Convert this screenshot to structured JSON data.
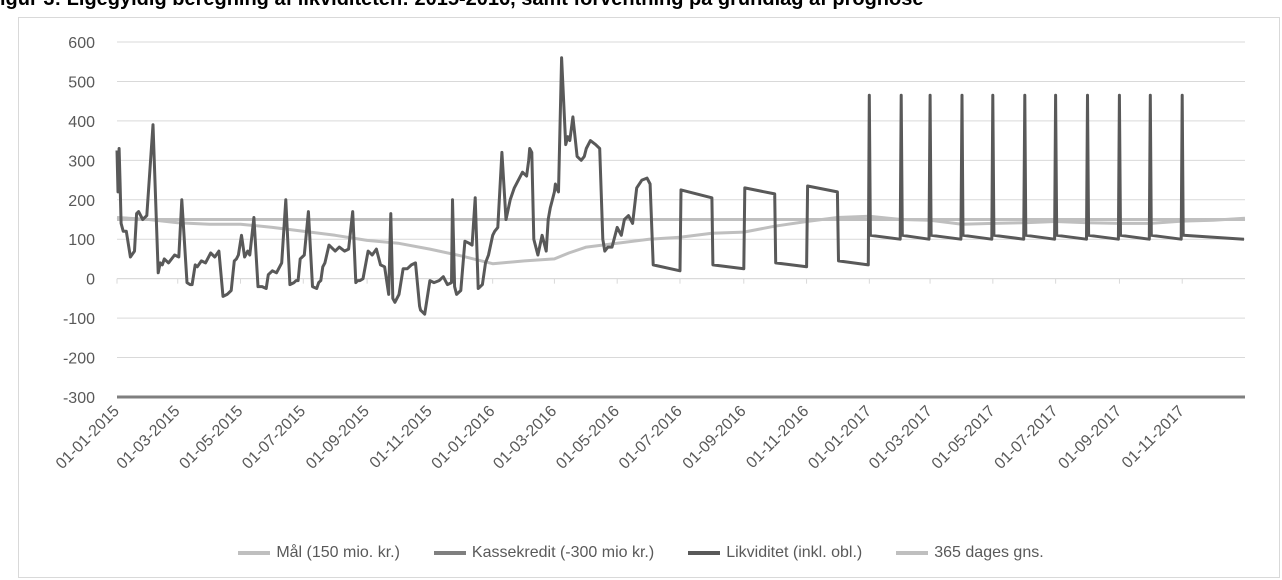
{
  "title": "igur 3: Ligegyldig beregning af likviditeten: 2015-2016, samt forventning på grundlag af prognose",
  "colors": {
    "mal": "#bfbfbf",
    "kassekredit": "#7f7f7f",
    "likviditet": "#595959",
    "gns": "#bfbfbf",
    "grid": "#d9d9d9",
    "axis_text": "#595959"
  },
  "chart_data": {
    "type": "line",
    "title": "",
    "xlabel": "",
    "ylabel": "",
    "ylim": [
      -300,
      600
    ],
    "yticks": [
      -300,
      -200,
      -100,
      0,
      100,
      200,
      300,
      400,
      500,
      600
    ],
    "x_tick_labels": [
      "01-01-2015",
      "01-03-2015",
      "01-05-2015",
      "01-07-2015",
      "01-09-2015",
      "01-11-2015",
      "01-01-2016",
      "01-03-2016",
      "01-05-2016",
      "01-07-2016",
      "01-09-2016",
      "01-11-2016",
      "01-01-2017",
      "01-03-2017",
      "01-05-2017",
      "01-07-2017",
      "01-09-2017",
      "01-11-2017"
    ],
    "xlim": [
      "2015-01-01",
      "2018-01-01"
    ],
    "grid": "horizontal",
    "legend_position": "bottom",
    "series": [
      {
        "name": "Mål (150 mio. kr.)",
        "x": [
          "2015-01-01",
          "2018-01-01"
        ],
        "values": [
          150,
          150
        ]
      },
      {
        "name": "Kassekredit (-300 mio kr.)",
        "x": [
          "2015-01-01",
          "2018-01-01"
        ],
        "values": [
          -300,
          -300
        ]
      },
      {
        "name": "Likviditet (inkl. obl.)",
        "x": [
          "2015-01-01",
          "2015-01-02",
          "2015-01-03",
          "2015-01-04",
          "2015-01-05",
          "2015-01-07",
          "2015-01-10",
          "2015-01-14",
          "2015-01-18",
          "2015-01-20",
          "2015-01-22",
          "2015-01-26",
          "2015-01-30",
          "2015-02-05",
          "2015-02-10",
          "2015-02-12",
          "2015-02-14",
          "2015-02-16",
          "2015-02-20",
          "2015-02-26",
          "2015-03-02",
          "2015-03-05",
          "2015-03-10",
          "2015-03-13",
          "2015-03-15",
          "2015-03-18",
          "2015-03-20",
          "2015-03-24",
          "2015-03-28",
          "2015-04-02",
          "2015-04-06",
          "2015-04-10",
          "2015-04-14",
          "2015-04-18",
          "2015-04-22",
          "2015-04-25",
          "2015-04-27",
          "2015-04-29",
          "2015-05-02",
          "2015-05-05",
          "2015-05-08",
          "2015-05-10",
          "2015-05-14",
          "2015-05-18",
          "2015-05-22",
          "2015-05-26",
          "2015-05-28",
          "2015-06-01",
          "2015-06-05",
          "2015-06-10",
          "2015-06-14",
          "2015-06-18",
          "2015-06-22",
          "2015-06-24",
          "2015-06-26",
          "2015-06-28",
          "2015-07-02",
          "2015-07-06",
          "2015-07-10",
          "2015-07-14",
          "2015-07-16",
          "2015-07-18",
          "2015-07-20",
          "2015-07-22",
          "2015-07-26",
          "2015-08-01",
          "2015-08-05",
          "2015-08-10",
          "2015-08-14",
          "2015-08-18",
          "2015-08-21",
          "2015-08-23",
          "2015-08-25",
          "2015-08-28",
          "2015-09-02",
          "2015-09-06",
          "2015-09-10",
          "2015-09-14",
          "2015-09-18",
          "2015-09-22",
          "2015-09-24",
          "2015-09-26",
          "2015-09-28",
          "2015-10-02",
          "2015-10-06",
          "2015-10-10",
          "2015-10-14",
          "2015-10-18",
          "2015-10-22",
          "2015-10-23",
          "2015-10-25",
          "2015-10-27",
          "2015-11-01",
          "2015-11-05",
          "2015-11-10",
          "2015-11-14",
          "2015-11-18",
          "2015-11-22",
          "2015-11-23",
          "2015-11-25",
          "2015-11-27",
          "2015-12-01",
          "2015-12-05",
          "2015-12-09",
          "2015-12-12",
          "2015-12-15",
          "2015-12-18",
          "2015-12-20",
          "2015-12-22",
          "2015-12-25",
          "2015-12-28",
          "2016-01-01",
          "2016-01-03",
          "2016-01-06",
          "2016-01-10",
          "2016-01-14",
          "2016-01-18",
          "2016-01-22",
          "2016-01-26",
          "2016-01-30",
          "2016-02-03",
          "2016-02-05",
          "2016-02-06",
          "2016-02-08",
          "2016-02-10",
          "2016-02-14",
          "2016-02-18",
          "2016-02-22",
          "2016-02-24",
          "2016-02-26",
          "2016-02-28",
          "2016-03-01",
          "2016-03-02",
          "2016-03-03",
          "2016-03-05",
          "2016-03-08",
          "2016-03-12",
          "2016-03-14",
          "2016-03-16",
          "2016-03-19",
          "2016-03-23",
          "2016-03-27",
          "2016-03-30",
          "2016-04-01",
          "2016-04-05",
          "2016-04-10",
          "2016-04-14",
          "2016-04-17",
          "2016-04-19",
          "2016-04-22",
          "2016-04-26",
          "2016-05-01",
          "2016-05-05",
          "2016-05-08",
          "2016-05-12",
          "2016-05-16",
          "2016-05-20",
          "2016-05-25",
          "2016-05-30",
          "2016-06-02",
          "2016-06-05",
          "2016-07-01",
          "2016-07-02",
          "2016-08-01",
          "2016-08-02",
          "2016-09-01",
          "2016-09-02",
          "2016-10-01",
          "2016-10-02",
          "2016-11-01",
          "2016-11-02",
          "2016-12-01",
          "2016-12-02",
          "2016-12-31",
          "2017-01-01",
          "2017-01-02",
          "2017-01-31",
          "2017-02-01",
          "2017-02-02",
          "2017-02-28",
          "2017-03-01",
          "2017-03-02",
          "2017-03-31",
          "2017-04-01",
          "2017-04-02",
          "2017-04-30",
          "2017-05-01",
          "2017-05-02",
          "2017-05-31",
          "2017-06-01",
          "2017-06-02",
          "2017-06-30",
          "2017-07-01",
          "2017-07-02",
          "2017-07-31",
          "2017-08-01",
          "2017-08-02",
          "2017-08-31",
          "2017-09-01",
          "2017-09-02",
          "2017-09-30",
          "2017-10-01",
          "2017-10-02",
          "2017-10-31",
          "2017-11-01",
          "2017-11-02",
          "2017-12-31"
        ],
        "values": [
          325,
          220,
          330,
          240,
          140,
          120,
          120,
          55,
          70,
          165,
          170,
          150,
          160,
          390,
          15,
          40,
          35,
          50,
          40,
          60,
          55,
          200,
          -10,
          -15,
          -15,
          35,
          30,
          45,
          40,
          65,
          55,
          70,
          -45,
          -40,
          -30,
          45,
          50,
          60,
          110,
          55,
          70,
          60,
          155,
          -20,
          -20,
          -25,
          10,
          20,
          15,
          40,
          200,
          -15,
          -10,
          -5,
          -5,
          50,
          60,
          170,
          -20,
          -25,
          -10,
          -5,
          30,
          40,
          85,
          70,
          80,
          70,
          75,
          170,
          -10,
          -5,
          -5,
          0,
          70,
          60,
          75,
          35,
          30,
          -40,
          165,
          -50,
          -60,
          -40,
          25,
          25,
          35,
          40,
          -70,
          -80,
          -85,
          -90,
          -5,
          -10,
          -5,
          5,
          -15,
          -10,
          200,
          -20,
          -40,
          -30,
          95,
          90,
          85,
          205,
          -25,
          -20,
          -15,
          40,
          60,
          110,
          120,
          130,
          320,
          150,
          200,
          230,
          250,
          270,
          260,
          300,
          330,
          320,
          100,
          60,
          110,
          70,
          150,
          180,
          200,
          220,
          240,
          230,
          220,
          560,
          340,
          360,
          350,
          410,
          310,
          300,
          310,
          330,
          350,
          340,
          330,
          100,
          70,
          80,
          80,
          130,
          110,
          150,
          160,
          140,
          230,
          250,
          255,
          240,
          35,
          20,
          225,
          205,
          35,
          25,
          230,
          215,
          40,
          30,
          235,
          220,
          45,
          35,
          465,
          110,
          100,
          465,
          110,
          100,
          465,
          110,
          100,
          465,
          110,
          100,
          465,
          110,
          100,
          465,
          110,
          100,
          465,
          110,
          100,
          465,
          110,
          100,
          465,
          110,
          100,
          465,
          110,
          100,
          465,
          110,
          100
        ]
      },
      {
        "name": "365 dages gns.",
        "x": [
          "2015-01-01",
          "2015-02-01",
          "2015-03-01",
          "2015-04-01",
          "2015-05-01",
          "2015-06-01",
          "2015-07-01",
          "2015-08-01",
          "2015-09-01",
          "2015-10-01",
          "2015-11-01",
          "2015-12-01",
          "2016-01-01",
          "2016-02-01",
          "2016-03-01",
          "2016-03-15",
          "2016-04-01",
          "2016-05-01",
          "2016-06-01",
          "2016-07-01",
          "2016-08-01",
          "2016-09-01",
          "2016-10-01",
          "2016-11-01",
          "2016-12-01",
          "2017-01-01",
          "2017-02-01",
          "2017-03-01",
          "2017-04-01",
          "2017-05-01",
          "2017-06-01",
          "2017-07-01",
          "2017-08-01",
          "2017-09-01",
          "2017-10-01",
          "2017-11-01",
          "2017-12-01",
          "2018-01-01"
        ],
        "values": [
          155,
          150,
          142,
          138,
          138,
          130,
          120,
          110,
          97,
          90,
          75,
          58,
          38,
          45,
          50,
          65,
          80,
          90,
          100,
          105,
          115,
          118,
          133,
          145,
          155,
          158,
          150,
          148,
          138,
          140,
          142,
          145,
          142,
          140,
          140,
          146,
          148,
          153
        ]
      }
    ]
  }
}
